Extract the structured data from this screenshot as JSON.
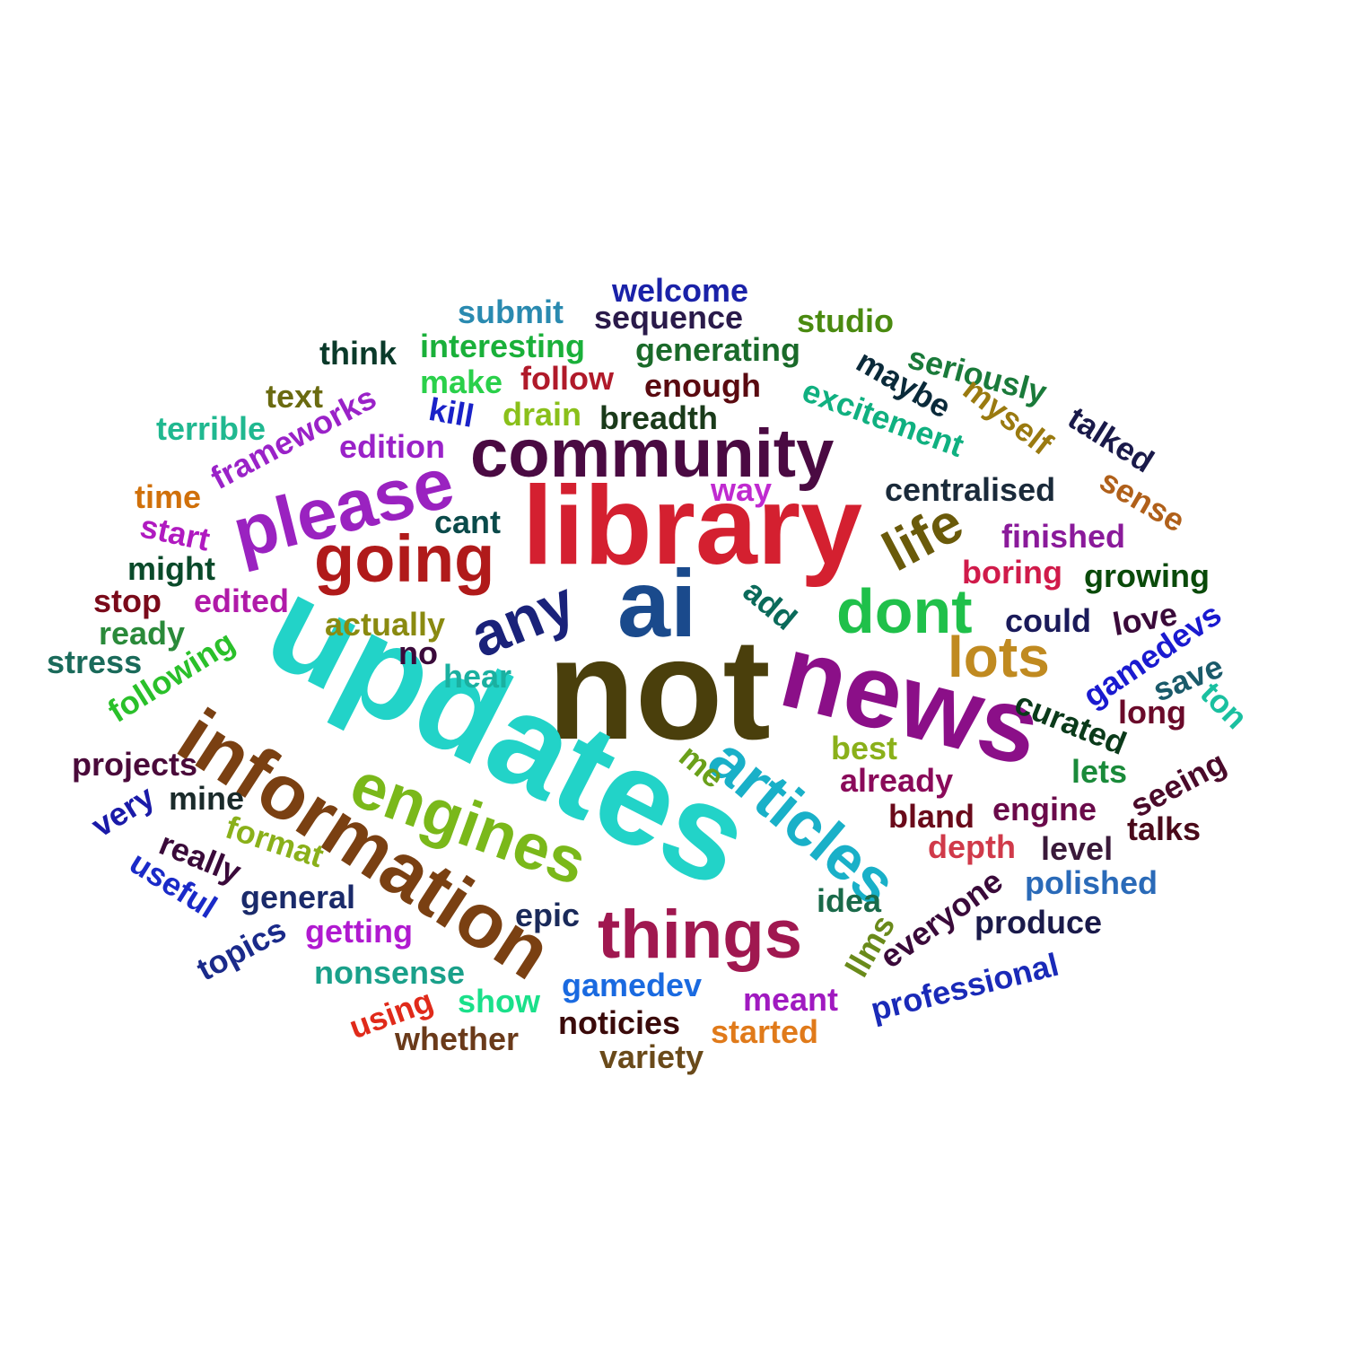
{
  "words": [
    {
      "text": "not",
      "weight": 160,
      "color": "#4a3f0c"
    },
    {
      "text": "updates",
      "weight": 155,
      "color": "#22d3c8"
    },
    {
      "text": "library",
      "weight": 122,
      "color": "#d42030"
    },
    {
      "text": "news",
      "weight": 118,
      "color": "#8b0f88"
    },
    {
      "text": "information",
      "weight": 92,
      "color": "#7a4012"
    },
    {
      "text": "ai",
      "weight": 108,
      "color": "#1a4a8c"
    },
    {
      "text": "community",
      "weight": 80,
      "color": "#4a0a42"
    },
    {
      "text": "please",
      "weight": 82,
      "color": "#9a22c0"
    },
    {
      "text": "going",
      "weight": 78,
      "color": "#b01a1a"
    },
    {
      "text": "engines",
      "weight": 76,
      "color": "#7ab81a"
    },
    {
      "text": "articles",
      "weight": 70,
      "color": "#19b0c8"
    },
    {
      "text": "things",
      "weight": 78,
      "color": "#a01850"
    },
    {
      "text": "dont",
      "weight": 70,
      "color": "#1fc04a"
    },
    {
      "text": "any",
      "weight": 68,
      "color": "#1a227a"
    },
    {
      "text": "life",
      "weight": 64,
      "color": "#6a5a0a"
    },
    {
      "text": "lots",
      "weight": 64,
      "color": "#c08a20"
    },
    {
      "text": "welcome",
      "weight": 34,
      "color": "#1a22a8"
    },
    {
      "text": "submit",
      "weight": 34,
      "color": "#2a8ab0"
    },
    {
      "text": "sequence",
      "weight": 34,
      "color": "#2a1a4a"
    },
    {
      "text": "studio",
      "weight": 34,
      "color": "#4a8a10"
    },
    {
      "text": "think",
      "weight": 34,
      "color": "#0a3a2a"
    },
    {
      "text": "interesting",
      "weight": 34,
      "color": "#1ab03a"
    },
    {
      "text": "generating",
      "weight": 34,
      "color": "#1a6a2a"
    },
    {
      "text": "maybe",
      "weight": 34,
      "color": "#0a2a3a"
    },
    {
      "text": "seriously",
      "weight": 34,
      "color": "#1a7a3a"
    },
    {
      "text": "text",
      "weight": 34,
      "color": "#6a6a10"
    },
    {
      "text": "make",
      "weight": 34,
      "color": "#2ad04a"
    },
    {
      "text": "follow",
      "weight": 34,
      "color": "#b01a2a"
    },
    {
      "text": "enough",
      "weight": 34,
      "color": "#5a0a10"
    },
    {
      "text": "excitement",
      "weight": 34,
      "color": "#10b080"
    },
    {
      "text": "myself",
      "weight": 34,
      "color": "#9a7a10"
    },
    {
      "text": "terrible",
      "weight": 34,
      "color": "#20b890"
    },
    {
      "text": "frameworks",
      "weight": 34,
      "color": "#9a22c8"
    },
    {
      "text": "kill",
      "weight": 34,
      "color": "#1a22c8"
    },
    {
      "text": "drain",
      "weight": 34,
      "color": "#8ac01a"
    },
    {
      "text": "breadth",
      "weight": 34,
      "color": "#1a3a1a"
    },
    {
      "text": "talked",
      "weight": 34,
      "color": "#1a1a4a"
    },
    {
      "text": "edition",
      "weight": 34,
      "color": "#9a22c8"
    },
    {
      "text": "time",
      "weight": 34,
      "color": "#d0700a"
    },
    {
      "text": "way",
      "weight": 34,
      "color": "#c02ad0"
    },
    {
      "text": "centralised",
      "weight": 34,
      "color": "#1a2a3a"
    },
    {
      "text": "sense",
      "weight": 34,
      "color": "#b0601a"
    },
    {
      "text": "start",
      "weight": 34,
      "color": "#b01ac0"
    },
    {
      "text": "cant",
      "weight": 34,
      "color": "#0a4a4a"
    },
    {
      "text": "finished",
      "weight": 34,
      "color": "#8a1a9a"
    },
    {
      "text": "might",
      "weight": 34,
      "color": "#0a4a2a"
    },
    {
      "text": "boring",
      "weight": 34,
      "color": "#d01a4a"
    },
    {
      "text": "growing",
      "weight": 34,
      "color": "#0a4a0a"
    },
    {
      "text": "stop",
      "weight": 34,
      "color": "#7a0a1a"
    },
    {
      "text": "edited",
      "weight": 34,
      "color": "#b01aa8"
    },
    {
      "text": "add",
      "weight": 34,
      "color": "#0a6a5a"
    },
    {
      "text": "could",
      "weight": 34,
      "color": "#1a1a5a"
    },
    {
      "text": "love",
      "weight": 34,
      "color": "#3a0a3a"
    },
    {
      "text": "ready",
      "weight": 34,
      "color": "#2a8a3a"
    },
    {
      "text": "actually",
      "weight": 34,
      "color": "#8a8a10"
    },
    {
      "text": "gamedevs",
      "weight": 34,
      "color": "#1a1ad0"
    },
    {
      "text": "stress",
      "weight": 34,
      "color": "#1a6a5a"
    },
    {
      "text": "following",
      "weight": 34,
      "color": "#2ac02a"
    },
    {
      "text": "no",
      "weight": 34,
      "color": "#3a0a3a"
    },
    {
      "text": "hear",
      "weight": 34,
      "color": "#1ab0a0"
    },
    {
      "text": "save",
      "weight": 34,
      "color": "#1a5a6a"
    },
    {
      "text": "ton",
      "weight": 34,
      "color": "#1ac0a0"
    },
    {
      "text": "curated",
      "weight": 34,
      "color": "#0a3a1a"
    },
    {
      "text": "long",
      "weight": 34,
      "color": "#6a0a2a"
    },
    {
      "text": "projects",
      "weight": 34,
      "color": "#4a0a3a"
    },
    {
      "text": "best",
      "weight": 34,
      "color": "#8ab01a"
    },
    {
      "text": "me",
      "weight": 34,
      "color": "#6aa01a"
    },
    {
      "text": "lets",
      "weight": 34,
      "color": "#1a8a3a"
    },
    {
      "text": "seeing",
      "weight": 34,
      "color": "#4a0a2a"
    },
    {
      "text": "very",
      "weight": 34,
      "color": "#1a1aa8"
    },
    {
      "text": "mine",
      "weight": 34,
      "color": "#1a2a2a"
    },
    {
      "text": "already",
      "weight": 34,
      "color": "#8a0a5a"
    },
    {
      "text": "bland",
      "weight": 34,
      "color": "#6a0a1a"
    },
    {
      "text": "engine",
      "weight": 34,
      "color": "#6a0a4a"
    },
    {
      "text": "format",
      "weight": 34,
      "color": "#8ab01a"
    },
    {
      "text": "talks",
      "weight": 34,
      "color": "#4a0a1a"
    },
    {
      "text": "really",
      "weight": 34,
      "color": "#3a0a3a"
    },
    {
      "text": "depth",
      "weight": 34,
      "color": "#d03a4a"
    },
    {
      "text": "level",
      "weight": 34,
      "color": "#3a1a3a"
    },
    {
      "text": "useful",
      "weight": 34,
      "color": "#1a2ac8"
    },
    {
      "text": "general",
      "weight": 34,
      "color": "#1a2a6a"
    },
    {
      "text": "idea",
      "weight": 34,
      "color": "#1a6a4a"
    },
    {
      "text": "everyone",
      "weight": 34,
      "color": "#3a0a3a"
    },
    {
      "text": "polished",
      "weight": 34,
      "color": "#2a6ab8"
    },
    {
      "text": "epic",
      "weight": 34,
      "color": "#1a2a5a"
    },
    {
      "text": "produce",
      "weight": 34,
      "color": "#1a1a4a"
    },
    {
      "text": "topics",
      "weight": 34,
      "color": "#1a2a8a"
    },
    {
      "text": "getting",
      "weight": 34,
      "color": "#b01ad0"
    },
    {
      "text": "llms",
      "weight": 34,
      "color": "#6a8a1a"
    },
    {
      "text": "nonsense",
      "weight": 34,
      "color": "#1aa08a"
    },
    {
      "text": "professional",
      "weight": 34,
      "color": "#1a2ab8"
    },
    {
      "text": "using",
      "weight": 34,
      "color": "#e02a1a"
    },
    {
      "text": "show",
      "weight": 34,
      "color": "#1ae08a"
    },
    {
      "text": "gamedev",
      "weight": 34,
      "color": "#1a6ae0"
    },
    {
      "text": "meant",
      "weight": 34,
      "color": "#a01ac0"
    },
    {
      "text": "whether",
      "weight": 34,
      "color": "#6a3a1a"
    },
    {
      "text": "noticies",
      "weight": 34,
      "color": "#3a0a0a"
    },
    {
      "text": "started",
      "weight": 34,
      "color": "#e07a1a"
    },
    {
      "text": "variety",
      "weight": 34,
      "color": "#6a4a1a"
    }
  ]
}
